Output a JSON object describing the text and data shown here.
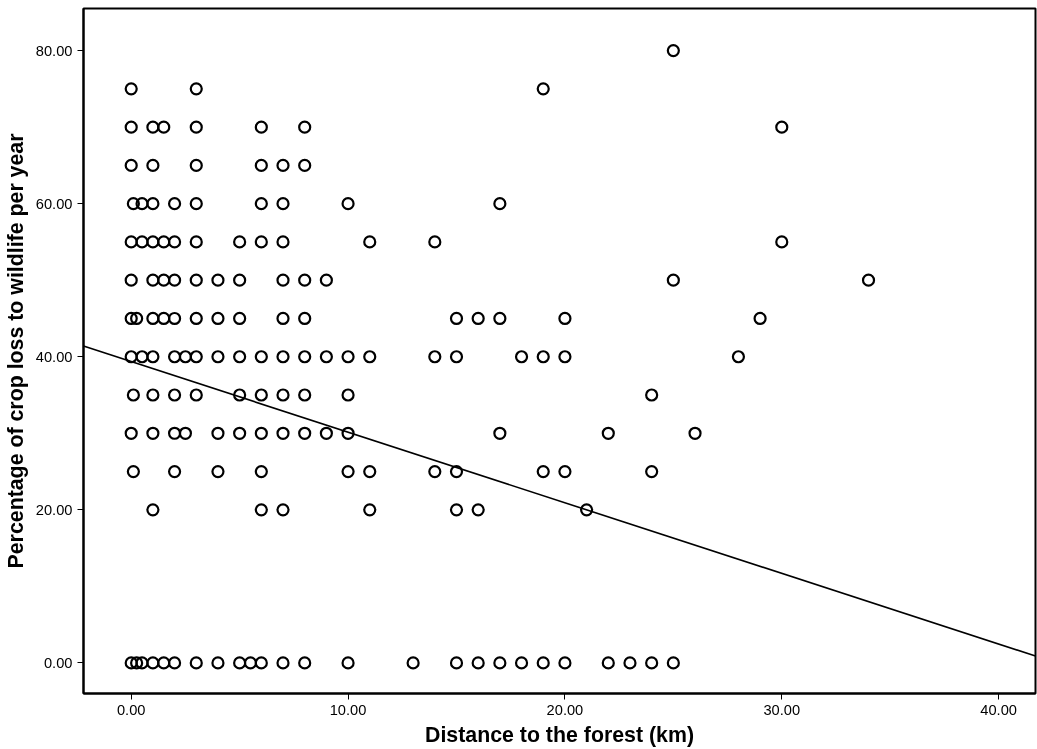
{
  "chart_data": {
    "type": "scatter",
    "xlabel": "Distance to the forest (km)",
    "ylabel": "Percentage of crop loss to wildlife per year",
    "xlim": [
      -2.2,
      41.7
    ],
    "ylim": [
      -4,
      85.5
    ],
    "xticks": [
      {
        "value": 0,
        "label": "0.00"
      },
      {
        "value": 10,
        "label": "10.00"
      },
      {
        "value": 20,
        "label": "20.00"
      },
      {
        "value": 30,
        "label": "30.00"
      },
      {
        "value": 40,
        "label": "40.00"
      }
    ],
    "yticks": [
      {
        "value": 0,
        "label": "0.00"
      },
      {
        "value": 20,
        "label": "20.00"
      },
      {
        "value": 40,
        "label": "40.00"
      },
      {
        "value": 60,
        "label": "60.00"
      },
      {
        "value": 80,
        "label": "80.00"
      }
    ],
    "grid": false,
    "series": [
      {
        "marker": "circle",
        "color": "#000000",
        "x": [
          25,
          0,
          3,
          19,
          0,
          1,
          1.5,
          3,
          6,
          8,
          30,
          0,
          1,
          3,
          6,
          7,
          8,
          0.1,
          0.5,
          1,
          2,
          3,
          6,
          7,
          10,
          17,
          0,
          0.5,
          1,
          1.5,
          2,
          3,
          5,
          6,
          7,
          11,
          14,
          30,
          0,
          1,
          1.5,
          2,
          3,
          4,
          5,
          7,
          8,
          9,
          25,
          34,
          0,
          0.25,
          1,
          1.5,
          2,
          3,
          4,
          5,
          7,
          8,
          15,
          16,
          17,
          20,
          29,
          0,
          0.5,
          1,
          2,
          2.5,
          3,
          4,
          5,
          6,
          7,
          8,
          9,
          10,
          11,
          14,
          15,
          18,
          19,
          20,
          28,
          0.1,
          1,
          2,
          3,
          5,
          6,
          7,
          8,
          10,
          24,
          0,
          1,
          2,
          2.5,
          4,
          5,
          6,
          7,
          8,
          9,
          10,
          17,
          22,
          26,
          0.1,
          2,
          4,
          6,
          10,
          11,
          14,
          15,
          19,
          20,
          24,
          1,
          6,
          7,
          11,
          15,
          16,
          21,
          0,
          0.25,
          0.5,
          1,
          1.5,
          2,
          3,
          4,
          5,
          5.5,
          6,
          7,
          8,
          10,
          13,
          15,
          16,
          17,
          18,
          19,
          20,
          22,
          23,
          24,
          25
        ],
        "values": [
          80,
          75,
          75,
          75,
          70,
          70,
          70,
          70,
          70,
          70,
          70,
          65,
          65,
          65,
          65,
          65,
          65,
          60,
          60,
          60,
          60,
          60,
          60,
          60,
          60,
          60,
          55,
          55,
          55,
          55,
          55,
          55,
          55,
          55,
          55,
          55,
          55,
          55,
          50,
          50,
          50,
          50,
          50,
          50,
          50,
          50,
          50,
          50,
          50,
          50,
          45,
          45,
          45,
          45,
          45,
          45,
          45,
          45,
          45,
          45,
          45,
          45,
          45,
          45,
          45,
          40,
          40,
          40,
          40,
          40,
          40,
          40,
          40,
          40,
          40,
          40,
          40,
          40,
          40,
          40,
          40,
          40,
          40,
          40,
          40,
          35,
          35,
          35,
          35,
          35,
          35,
          35,
          35,
          35,
          35,
          30,
          30,
          30,
          30,
          30,
          30,
          30,
          30,
          30,
          30,
          30,
          30,
          30,
          30,
          25,
          25,
          25,
          25,
          25,
          25,
          25,
          25,
          25,
          25,
          25,
          20,
          20,
          20,
          20,
          20,
          20,
          20,
          0,
          0,
          0,
          0,
          0,
          0,
          0,
          0,
          0,
          0,
          0,
          0,
          0,
          0,
          0,
          0,
          0,
          0,
          0,
          0,
          0,
          0,
          0,
          0,
          0
        ]
      },
      {
        "type": "line",
        "color": "#000000",
        "x": [
          -2.2,
          41.7
        ],
        "values": [
          41.4,
          0.9
        ]
      }
    ]
  }
}
